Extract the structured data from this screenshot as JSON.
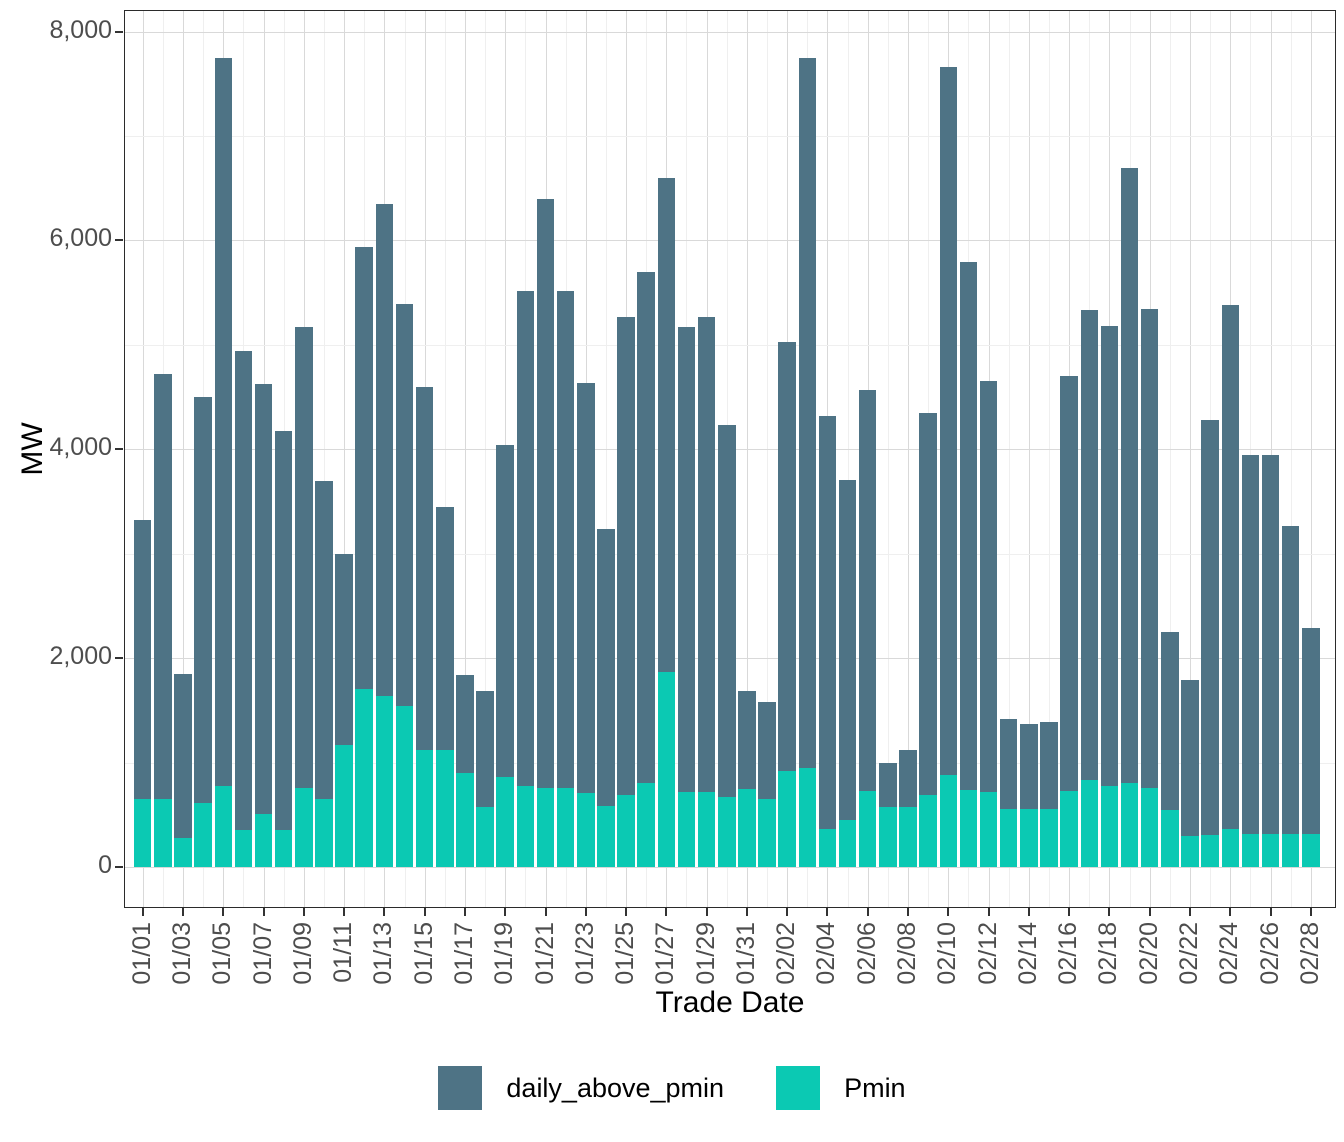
{
  "chart_data": {
    "type": "bar",
    "stacked": true,
    "title": "",
    "xlabel": "Trade Date",
    "ylabel": "MW",
    "ylim": [
      0,
      8000
    ],
    "yticks": [
      0,
      2000,
      4000,
      6000,
      8000
    ],
    "ytick_labels": [
      "0",
      "2,000",
      "4,000",
      "6,000",
      "8,000"
    ],
    "yticks_minor": [
      1000,
      3000,
      5000,
      7000
    ],
    "grid": true,
    "legend_position": "bottom",
    "categories": [
      "01/01",
      "01/02",
      "01/03",
      "01/04",
      "01/05",
      "01/06",
      "01/07",
      "01/08",
      "01/09",
      "01/10",
      "01/11",
      "01/12",
      "01/13",
      "01/14",
      "01/15",
      "01/16",
      "01/17",
      "01/18",
      "01/19",
      "01/20",
      "01/21",
      "01/22",
      "01/23",
      "01/24",
      "01/25",
      "01/26",
      "01/27",
      "01/28",
      "01/29",
      "01/30",
      "01/31",
      "02/01",
      "02/02",
      "02/03",
      "02/04",
      "02/05",
      "02/06",
      "02/07",
      "02/08",
      "02/09",
      "02/10",
      "02/11",
      "02/12",
      "02/13",
      "02/14",
      "02/15",
      "02/16",
      "02/17",
      "02/18",
      "02/19",
      "02/20",
      "02/21",
      "02/22",
      "02/23",
      "02/24",
      "02/25",
      "02/26",
      "02/27",
      "02/28"
    ],
    "xtick_labels": [
      "01/01",
      "01/03",
      "01/05",
      "01/07",
      "01/09",
      "01/11",
      "01/13",
      "01/15",
      "01/17",
      "01/19",
      "01/21",
      "01/23",
      "01/25",
      "01/27",
      "01/29",
      "01/31",
      "02/02",
      "02/04",
      "02/06",
      "02/08",
      "02/10",
      "02/12",
      "02/14",
      "02/16",
      "02/18",
      "02/20",
      "02/22",
      "02/24",
      "02/26",
      "02/28"
    ],
    "series": [
      {
        "name": "daily_above_pmin",
        "color": "#4e7385",
        "values": [
          2670,
          4075,
          1565,
          3890,
          6970,
          4590,
          4110,
          3820,
          4410,
          3050,
          1830,
          4240,
          4710,
          3850,
          3480,
          2330,
          940,
          1120,
          3180,
          4740,
          5635,
          4760,
          3920,
          2660,
          4580,
          4900,
          4730,
          4450,
          4550,
          3560,
          940,
          930,
          4110,
          6800,
          3960,
          3260,
          3840,
          430,
          550,
          3660,
          6780,
          5050,
          3930,
          860,
          810,
          830,
          3970,
          4500,
          4400,
          5890,
          4580,
          1700,
          1490,
          3970,
          5020,
          3625,
          3625,
          2945,
          1970
        ]
      },
      {
        "name": "Pmin",
        "color": "#0bc9b3",
        "values": [
          650,
          650,
          280,
          610,
          780,
          350,
          510,
          350,
          760,
          650,
          1170,
          1700,
          1640,
          1540,
          1120,
          1120,
          900,
          570,
          860,
          780,
          760,
          760,
          710,
          580,
          690,
          800,
          1870,
          720,
          720,
          670,
          750,
          650,
          920,
          950,
          360,
          450,
          730,
          570,
          570,
          690,
          880,
          740,
          720,
          560,
          560,
          560,
          730,
          830,
          780,
          800,
          760,
          550,
          300,
          310,
          360,
          320,
          320,
          320,
          320
        ]
      }
    ]
  }
}
